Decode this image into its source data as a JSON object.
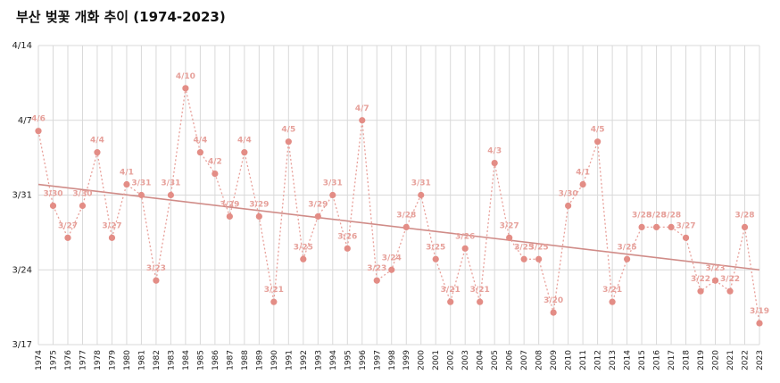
{
  "chart_data": {
    "type": "line",
    "title": "부산 벚꽃 개화 추이 (1974-2023)",
    "xlabel": "",
    "ylabel": "",
    "y_ticks": [
      "3/17",
      "3/24",
      "3/31",
      "4/7",
      "4/14"
    ],
    "x": [
      1974,
      1975,
      1976,
      1977,
      1978,
      1979,
      1980,
      1981,
      1982,
      1983,
      1984,
      1985,
      1986,
      1987,
      1988,
      1989,
      1990,
      1991,
      1992,
      1993,
      1994,
      1995,
      1996,
      1997,
      1998,
      1999,
      2000,
      2001,
      2002,
      2003,
      2004,
      2005,
      2006,
      2007,
      2008,
      2009,
      2010,
      2011,
      2012,
      2013,
      2014,
      2015,
      2016,
      2017,
      2018,
      2019,
      2020,
      2021,
      2022,
      2023
    ],
    "series": [
      {
        "dates": [
          "4/6",
          "3/30",
          "3/27",
          "3/30",
          "4/4",
          "3/27",
          "4/1",
          "3/31",
          "3/23",
          "3/31",
          "4/10",
          "4/4",
          "4/2",
          "3/29",
          "4/4",
          "3/29",
          "3/21",
          "4/5",
          "3/25",
          "3/29",
          "3/31",
          "3/26",
          "4/7",
          "3/23",
          "3/24",
          "3/28",
          "3/31",
          "3/25",
          "3/21",
          "3/26",
          "3/21",
          "4/3",
          "3/27",
          "3/25",
          "3/25",
          "3/20",
          "3/30",
          "4/1",
          "4/5",
          "3/21",
          "3/25",
          "3/28",
          "3/28",
          "3/28",
          "3/27",
          "3/22",
          "3/23",
          "3/22",
          "3/28",
          "3/19"
        ],
        "trend": {
          "start": "4/1",
          "end": "3/24"
        }
      }
    ],
    "grid": true,
    "legend": "none"
  }
}
